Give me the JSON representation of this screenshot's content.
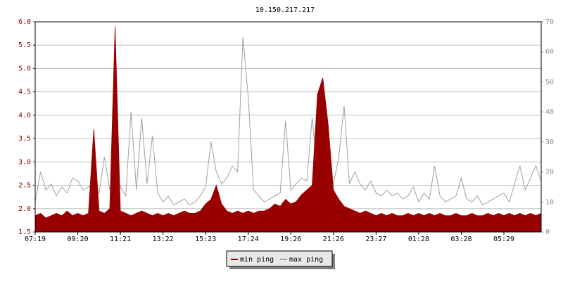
{
  "chart_data": {
    "type": "line",
    "title": "10.150.217.217",
    "xtick_labels": [
      "07:19",
      "09:20",
      "11:21",
      "13:22",
      "15:23",
      "17:24",
      "19:26",
      "21:26",
      "23:27",
      "01:28",
      "03:28",
      "05:29"
    ],
    "ylim": [
      1.5,
      6
    ],
    "yticks": [
      1.5,
      {
        "value": 2,
        "label": "2.0"
      },
      2.5,
      {
        "value": 3,
        "label": "3.0"
      },
      3.5,
      {
        "value": 4,
        "label": "4.0"
      },
      4.5,
      {
        "value": 5,
        "label": "5.0"
      },
      5.5,
      {
        "value": 6,
        "label": "6.0"
      }
    ],
    "y2lim": [
      0,
      70
    ],
    "y2ticks": [
      0,
      10,
      20,
      30,
      40,
      50,
      60,
      70
    ],
    "grid": true,
    "series": [
      {
        "name": "min ping",
        "color": "#990000",
        "axis": "y",
        "values": [
          1.85,
          1.9,
          1.8,
          1.85,
          1.9,
          1.85,
          1.95,
          1.85,
          1.9,
          1.85,
          1.9,
          3.7,
          1.95,
          1.9,
          2.0,
          5.9,
          1.95,
          1.9,
          1.85,
          1.9,
          1.95,
          1.9,
          1.85,
          1.9,
          1.85,
          1.9,
          1.85,
          1.9,
          1.95,
          1.9,
          1.9,
          1.95,
          2.1,
          2.2,
          2.5,
          2.1,
          1.95,
          1.9,
          1.95,
          1.9,
          1.95,
          1.9,
          1.95,
          1.95,
          2.0,
          2.1,
          2.05,
          2.2,
          2.1,
          2.15,
          2.3,
          2.4,
          2.5,
          4.45,
          4.8,
          3.8,
          2.4,
          2.2,
          2.05,
          2.0,
          1.95,
          1.9,
          1.95,
          1.9,
          1.85,
          1.9,
          1.85,
          1.9,
          1.85,
          1.85,
          1.9,
          1.85,
          1.9,
          1.85,
          1.9,
          1.85,
          1.9,
          1.85,
          1.85,
          1.9,
          1.85,
          1.85,
          1.9,
          1.85,
          1.85,
          1.9,
          1.85,
          1.9,
          1.85,
          1.9,
          1.85,
          1.9,
          1.85,
          1.9,
          1.85,
          1.9
        ]
      },
      {
        "name": "max ping",
        "color": "#a0a0a0",
        "axis": "y2",
        "values": [
          10,
          20,
          14,
          16,
          12,
          15,
          13,
          18,
          17,
          14,
          15,
          16,
          13,
          25,
          14,
          20,
          15,
          12,
          40,
          14,
          38,
          16,
          32,
          13,
          10,
          12,
          9,
          10,
          11,
          9,
          10,
          12,
          15,
          30,
          20,
          16,
          18,
          22,
          20,
          65,
          45,
          14,
          12,
          10,
          11,
          12,
          13,
          37,
          14,
          16,
          18,
          17,
          38,
          20,
          18,
          17,
          16,
          25,
          42,
          16,
          20,
          16,
          14,
          17,
          13,
          12,
          14,
          12,
          13,
          11,
          12,
          15,
          10,
          13,
          11,
          22,
          12,
          10,
          11,
          12,
          18,
          11,
          10,
          12,
          9,
          10,
          11,
          12,
          13,
          10,
          16,
          22,
          14,
          18,
          22,
          17
        ]
      }
    ]
  }
}
